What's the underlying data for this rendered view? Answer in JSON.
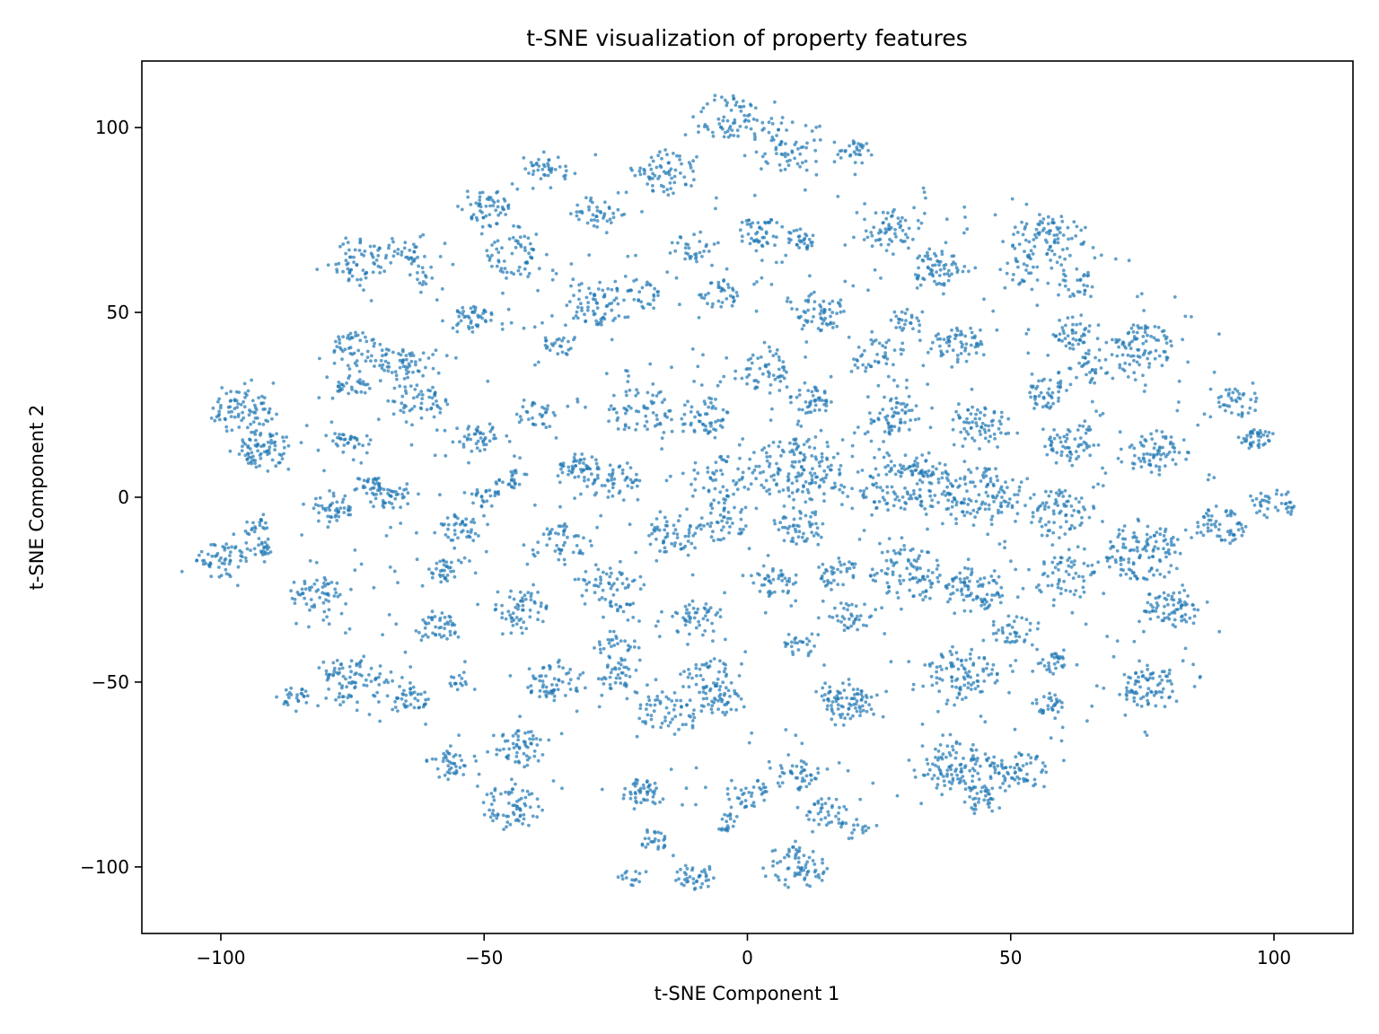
{
  "chart_data": {
    "type": "scatter",
    "title": "t-SNE visualization of property features",
    "xlabel": "t-SNE Component 1",
    "ylabel": "t-SNE Component 2",
    "xlim": [
      -115,
      115
    ],
    "ylim": [
      -118,
      118
    ],
    "xticks": [
      -100,
      -50,
      0,
      50,
      100
    ],
    "yticks": [
      -100,
      -50,
      0,
      50,
      100
    ],
    "xtick_labels": [
      "−100",
      "−50",
      "0",
      "50",
      "100"
    ],
    "ytick_labels": [
      "−100",
      "−50",
      "0",
      "50",
      "100"
    ],
    "grid": false,
    "legend": "none",
    "point_color": "#1f77b4",
    "point_opacity": 0.7,
    "series": [
      {
        "clusters": [
          {
            "cx": -4,
            "cy": 103,
            "r": 6,
            "n": 60
          },
          {
            "cx": 6,
            "cy": 96,
            "r": 8,
            "n": 80
          },
          {
            "cx": -15,
            "cy": 88,
            "r": 6,
            "n": 70
          },
          {
            "cx": 21,
            "cy": 93,
            "r": 4,
            "n": 30
          },
          {
            "cx": -38,
            "cy": 88,
            "r": 4,
            "n": 40
          },
          {
            "cx": -29,
            "cy": 77,
            "r": 4,
            "n": 40
          },
          {
            "cx": -49,
            "cy": 78,
            "r": 5,
            "n": 55
          },
          {
            "cx": -44,
            "cy": 65,
            "r": 6,
            "n": 60
          },
          {
            "cx": -74,
            "cy": 64,
            "r": 6,
            "n": 65
          },
          {
            "cx": -65,
            "cy": 66,
            "r": 4,
            "n": 30
          },
          {
            "cx": -62,
            "cy": 60,
            "r": 3,
            "n": 15
          },
          {
            "cx": 2,
            "cy": 72,
            "r": 4,
            "n": 45
          },
          {
            "cx": -10,
            "cy": 68,
            "r": 4,
            "n": 30
          },
          {
            "cx": 10,
            "cy": 70,
            "r": 3,
            "n": 30
          },
          {
            "cx": 27,
            "cy": 72,
            "r": 6,
            "n": 60
          },
          {
            "cx": 36,
            "cy": 62,
            "r": 5,
            "n": 65
          },
          {
            "cx": 57,
            "cy": 70,
            "r": 7,
            "n": 90
          },
          {
            "cx": 52,
            "cy": 62,
            "r": 4,
            "n": 25
          },
          {
            "cx": 62,
            "cy": 58,
            "r": 4,
            "n": 30
          },
          {
            "cx": -28,
            "cy": 52,
            "r": 6,
            "n": 70
          },
          {
            "cx": -20,
            "cy": 55,
            "r": 4,
            "n": 30
          },
          {
            "cx": -5,
            "cy": 55,
            "r": 4,
            "n": 35
          },
          {
            "cx": 14,
            "cy": 50,
            "r": 5,
            "n": 55
          },
          {
            "cx": 30,
            "cy": 48,
            "r": 3,
            "n": 25
          },
          {
            "cx": -52,
            "cy": 48,
            "r": 4,
            "n": 45
          },
          {
            "cx": -74,
            "cy": 40,
            "r": 5,
            "n": 50
          },
          {
            "cx": -65,
            "cy": 36,
            "r": 5,
            "n": 55
          },
          {
            "cx": -62,
            "cy": 26,
            "r": 5,
            "n": 55
          },
          {
            "cx": -75,
            "cy": 30,
            "r": 3,
            "n": 30
          },
          {
            "cx": -36,
            "cy": 41,
            "r": 3,
            "n": 25
          },
          {
            "cx": -96,
            "cy": 23,
            "r": 6,
            "n": 85
          },
          {
            "cx": -92,
            "cy": 13,
            "r": 5,
            "n": 80
          },
          {
            "cx": -76,
            "cy": 15,
            "r": 3,
            "n": 30
          },
          {
            "cx": -51,
            "cy": 16,
            "r": 4,
            "n": 40
          },
          {
            "cx": -40,
            "cy": 22,
            "r": 4,
            "n": 30
          },
          {
            "cx": 40,
            "cy": 41,
            "r": 5,
            "n": 60
          },
          {
            "cx": 25,
            "cy": 38,
            "r": 5,
            "n": 40
          },
          {
            "cx": 62,
            "cy": 44,
            "r": 4,
            "n": 45
          },
          {
            "cx": 75,
            "cy": 41,
            "r": 6,
            "n": 90
          },
          {
            "cx": 65,
            "cy": 35,
            "r": 4,
            "n": 30
          },
          {
            "cx": 57,
            "cy": 28,
            "r": 4,
            "n": 45
          },
          {
            "cx": -20,
            "cy": 24,
            "r": 6,
            "n": 60
          },
          {
            "cx": -8,
            "cy": 22,
            "r": 5,
            "n": 50
          },
          {
            "cx": 3,
            "cy": 34,
            "r": 5,
            "n": 50
          },
          {
            "cx": 12,
            "cy": 26,
            "r": 4,
            "n": 40
          },
          {
            "cx": 28,
            "cy": 22,
            "r": 5,
            "n": 60
          },
          {
            "cx": 45,
            "cy": 20,
            "r": 5,
            "n": 60
          },
          {
            "cx": 62,
            "cy": 15,
            "r": 5,
            "n": 60
          },
          {
            "cx": 78,
            "cy": 12,
            "r": 6,
            "n": 70
          },
          {
            "cx": 93,
            "cy": 26,
            "r": 4,
            "n": 40
          },
          {
            "cx": 96,
            "cy": 16,
            "r": 3,
            "n": 40
          },
          {
            "cx": 10,
            "cy": 8,
            "r": 9,
            "n": 150
          },
          {
            "cx": 30,
            "cy": 4,
            "r": 9,
            "n": 150
          },
          {
            "cx": 45,
            "cy": 0,
            "r": 8,
            "n": 120
          },
          {
            "cx": -5,
            "cy": 5,
            "r": 6,
            "n": 60
          },
          {
            "cx": -25,
            "cy": 4,
            "r": 5,
            "n": 50
          },
          {
            "cx": -32,
            "cy": 8,
            "r": 4,
            "n": 45
          },
          {
            "cx": -50,
            "cy": 0,
            "r": 3,
            "n": 25
          },
          {
            "cx": -68,
            "cy": 0,
            "r": 4,
            "n": 35
          },
          {
            "cx": -79,
            "cy": -3,
            "r": 4,
            "n": 45
          },
          {
            "cx": -72,
            "cy": 3,
            "r": 3,
            "n": 30
          },
          {
            "cx": -93,
            "cy": -8,
            "r": 3,
            "n": 20
          },
          {
            "cx": -100,
            "cy": -17,
            "r": 5,
            "n": 60
          },
          {
            "cx": -92,
            "cy": -14,
            "r": 3,
            "n": 25
          },
          {
            "cx": 60,
            "cy": -4,
            "r": 6,
            "n": 70
          },
          {
            "cx": 75,
            "cy": -15,
            "r": 8,
            "n": 120
          },
          {
            "cx": 90,
            "cy": -8,
            "r": 5,
            "n": 60
          },
          {
            "cx": 100,
            "cy": -2,
            "r": 4,
            "n": 40
          },
          {
            "cx": -55,
            "cy": -8,
            "r": 4,
            "n": 40
          },
          {
            "cx": -35,
            "cy": -12,
            "r": 5,
            "n": 45
          },
          {
            "cx": -15,
            "cy": -10,
            "r": 5,
            "n": 50
          },
          {
            "cx": -5,
            "cy": -7,
            "r": 5,
            "n": 45
          },
          {
            "cx": 10,
            "cy": -8,
            "r": 5,
            "n": 50
          },
          {
            "cx": 30,
            "cy": -20,
            "r": 7,
            "n": 90
          },
          {
            "cx": 43,
            "cy": -25,
            "r": 6,
            "n": 80
          },
          {
            "cx": 60,
            "cy": -22,
            "r": 6,
            "n": 60
          },
          {
            "cx": 80,
            "cy": -30,
            "r": 5,
            "n": 70
          },
          {
            "cx": -58,
            "cy": -20,
            "r": 3,
            "n": 30
          },
          {
            "cx": -43,
            "cy": -30,
            "r": 5,
            "n": 55
          },
          {
            "cx": -26,
            "cy": -25,
            "r": 6,
            "n": 60
          },
          {
            "cx": 5,
            "cy": -23,
            "r": 4,
            "n": 40
          },
          {
            "cx": 17,
            "cy": -20,
            "r": 4,
            "n": 35
          },
          {
            "cx": -82,
            "cy": -27,
            "r": 5,
            "n": 55
          },
          {
            "cx": -59,
            "cy": -35,
            "r": 4,
            "n": 45
          },
          {
            "cx": -10,
            "cy": -33,
            "r": 5,
            "n": 45
          },
          {
            "cx": 20,
            "cy": -32,
            "r": 4,
            "n": 35
          },
          {
            "cx": 50,
            "cy": -36,
            "r": 4,
            "n": 35
          },
          {
            "cx": -75,
            "cy": -50,
            "r": 7,
            "n": 85
          },
          {
            "cx": -64,
            "cy": -55,
            "r": 4,
            "n": 40
          },
          {
            "cx": -86,
            "cy": -54,
            "r": 3,
            "n": 25
          },
          {
            "cx": -55,
            "cy": -50,
            "r": 2,
            "n": 12
          },
          {
            "cx": -37,
            "cy": -50,
            "r": 5,
            "n": 55
          },
          {
            "cx": -25,
            "cy": -48,
            "r": 4,
            "n": 35
          },
          {
            "cx": -8,
            "cy": -48,
            "r": 5,
            "n": 50
          },
          {
            "cx": 19,
            "cy": -55,
            "r": 5,
            "n": 80
          },
          {
            "cx": 41,
            "cy": -48,
            "r": 7,
            "n": 90
          },
          {
            "cx": 58,
            "cy": -45,
            "r": 3,
            "n": 30
          },
          {
            "cx": 76,
            "cy": -52,
            "r": 5,
            "n": 70
          },
          {
            "cx": 57,
            "cy": -56,
            "r": 3,
            "n": 30
          },
          {
            "cx": -15,
            "cy": -58,
            "r": 6,
            "n": 60
          },
          {
            "cx": -5,
            "cy": -55,
            "r": 4,
            "n": 40
          },
          {
            "cx": -43,
            "cy": -68,
            "r": 5,
            "n": 55
          },
          {
            "cx": -57,
            "cy": -72,
            "r": 4,
            "n": 40
          },
          {
            "cx": -45,
            "cy": -84,
            "r": 6,
            "n": 70
          },
          {
            "cx": 40,
            "cy": -73,
            "r": 7,
            "n": 110
          },
          {
            "cx": 52,
            "cy": -74,
            "r": 5,
            "n": 60
          },
          {
            "cx": 45,
            "cy": -82,
            "r": 4,
            "n": 35
          },
          {
            "cx": -20,
            "cy": -80,
            "r": 4,
            "n": 45
          },
          {
            "cx": 0,
            "cy": -80,
            "r": 4,
            "n": 35
          },
          {
            "cx": 10,
            "cy": -75,
            "r": 4,
            "n": 40
          },
          {
            "cx": 15,
            "cy": -85,
            "r": 4,
            "n": 35
          },
          {
            "cx": -18,
            "cy": -93,
            "r": 3,
            "n": 25
          },
          {
            "cx": -10,
            "cy": -102,
            "r": 4,
            "n": 40
          },
          {
            "cx": 10,
            "cy": -100,
            "r": 6,
            "n": 70
          },
          {
            "cx": 20,
            "cy": -90,
            "r": 3,
            "n": 20
          },
          {
            "cx": -22,
            "cy": -103,
            "r": 2,
            "n": 15
          },
          {
            "cx": -3,
            "cy": -88,
            "r": 3,
            "n": 20
          },
          {
            "cx": -25,
            "cy": -40,
            "r": 4,
            "n": 30
          },
          {
            "cx": 10,
            "cy": -40,
            "r": 3,
            "n": 25
          },
          {
            "cx": -45,
            "cy": 5,
            "r": 3,
            "n": 25
          }
        ],
        "scatter_noise": {
          "x_range": [
            -85,
            90
          ],
          "y_range": [
            -85,
            85
          ],
          "n": 700
        }
      }
    ]
  }
}
